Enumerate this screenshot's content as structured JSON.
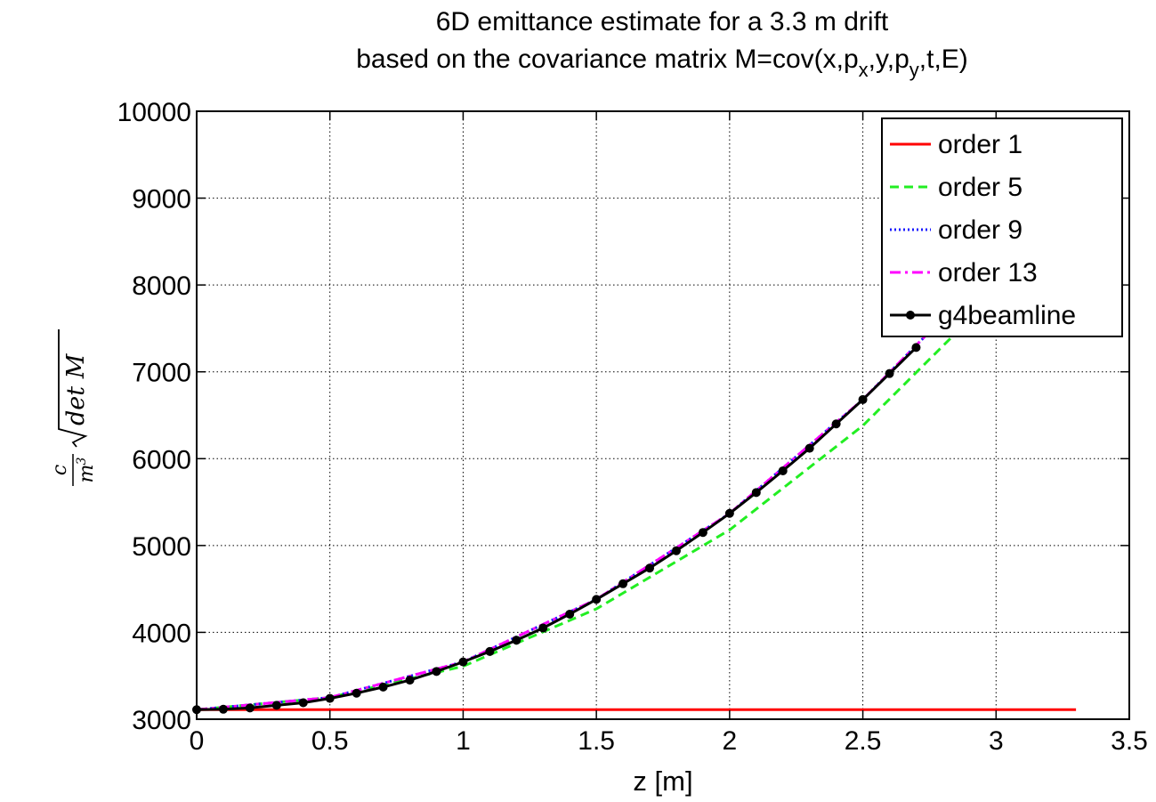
{
  "chart_data": {
    "type": "line",
    "title_line1": "6D emittance estimate for a 3.3 m drift",
    "title_line2": {
      "prefix": "based on the covariance matrix M=cov(x,p",
      "sub1": "x",
      "mid": ",y,p",
      "sub2": "y",
      "suffix": ",t,E)"
    },
    "xlabel": "z [m]",
    "ylabel": {
      "frac_num": "c",
      "frac_den": "m",
      "frac_den_sup": "3",
      "rest": "det M"
    },
    "xlim": [
      0,
      3.5
    ],
    "ylim": [
      3000,
      10000
    ],
    "xticks": [
      "0",
      "0.5",
      "1",
      "1.5",
      "2",
      "2.5",
      "3",
      "3.5"
    ],
    "yticks": [
      "3000",
      "4000",
      "5000",
      "6000",
      "7000",
      "8000",
      "9000",
      "10000"
    ],
    "grid": true,
    "legend_position": "top-right",
    "series": [
      {
        "name": "order 1",
        "color": "#ff0000",
        "style": "solid",
        "x": [
          0,
          3.3
        ],
        "y": [
          3110,
          3110
        ]
      },
      {
        "name": "order 5",
        "color": "#22ee22",
        "style": "dashed",
        "x": [
          0,
          0.5,
          1.0,
          1.5,
          2.0,
          2.5,
          2.85
        ],
        "y": [
          3110,
          3250,
          3610,
          4270,
          5180,
          6380,
          7450
        ]
      },
      {
        "name": "order 9",
        "color": "#1a1aff",
        "style": "dotted",
        "x": [
          0,
          0.5,
          1.0,
          1.5,
          2.0,
          2.5,
          2.75
        ],
        "y": [
          3110,
          3250,
          3660,
          4380,
          5370,
          6680,
          7460
        ]
      },
      {
        "name": "order 13",
        "color": "#ff00ff",
        "style": "dashdot",
        "x": [
          0,
          0.5,
          1.0,
          1.5,
          2.0,
          2.5,
          2.75
        ],
        "y": [
          3110,
          3250,
          3660,
          4380,
          5370,
          6680,
          7460
        ]
      },
      {
        "name": "g4beamline",
        "color": "#000000",
        "style": "solid-markers",
        "x": [
          0,
          0.1,
          0.2,
          0.3,
          0.4,
          0.5,
          0.6,
          0.7,
          0.8,
          0.9,
          1.0,
          1.1,
          1.2,
          1.3,
          1.4,
          1.5,
          1.6,
          1.7,
          1.8,
          1.9,
          2.0,
          2.1,
          2.2,
          2.3,
          2.4,
          2.5,
          2.6,
          2.7
        ],
        "y": [
          3110,
          3115,
          3130,
          3160,
          3190,
          3240,
          3300,
          3370,
          3450,
          3550,
          3660,
          3780,
          3910,
          4050,
          4210,
          4380,
          4560,
          4740,
          4940,
          5150,
          5370,
          5610,
          5860,
          6120,
          6400,
          6680,
          6980,
          7280
        ]
      }
    ]
  }
}
